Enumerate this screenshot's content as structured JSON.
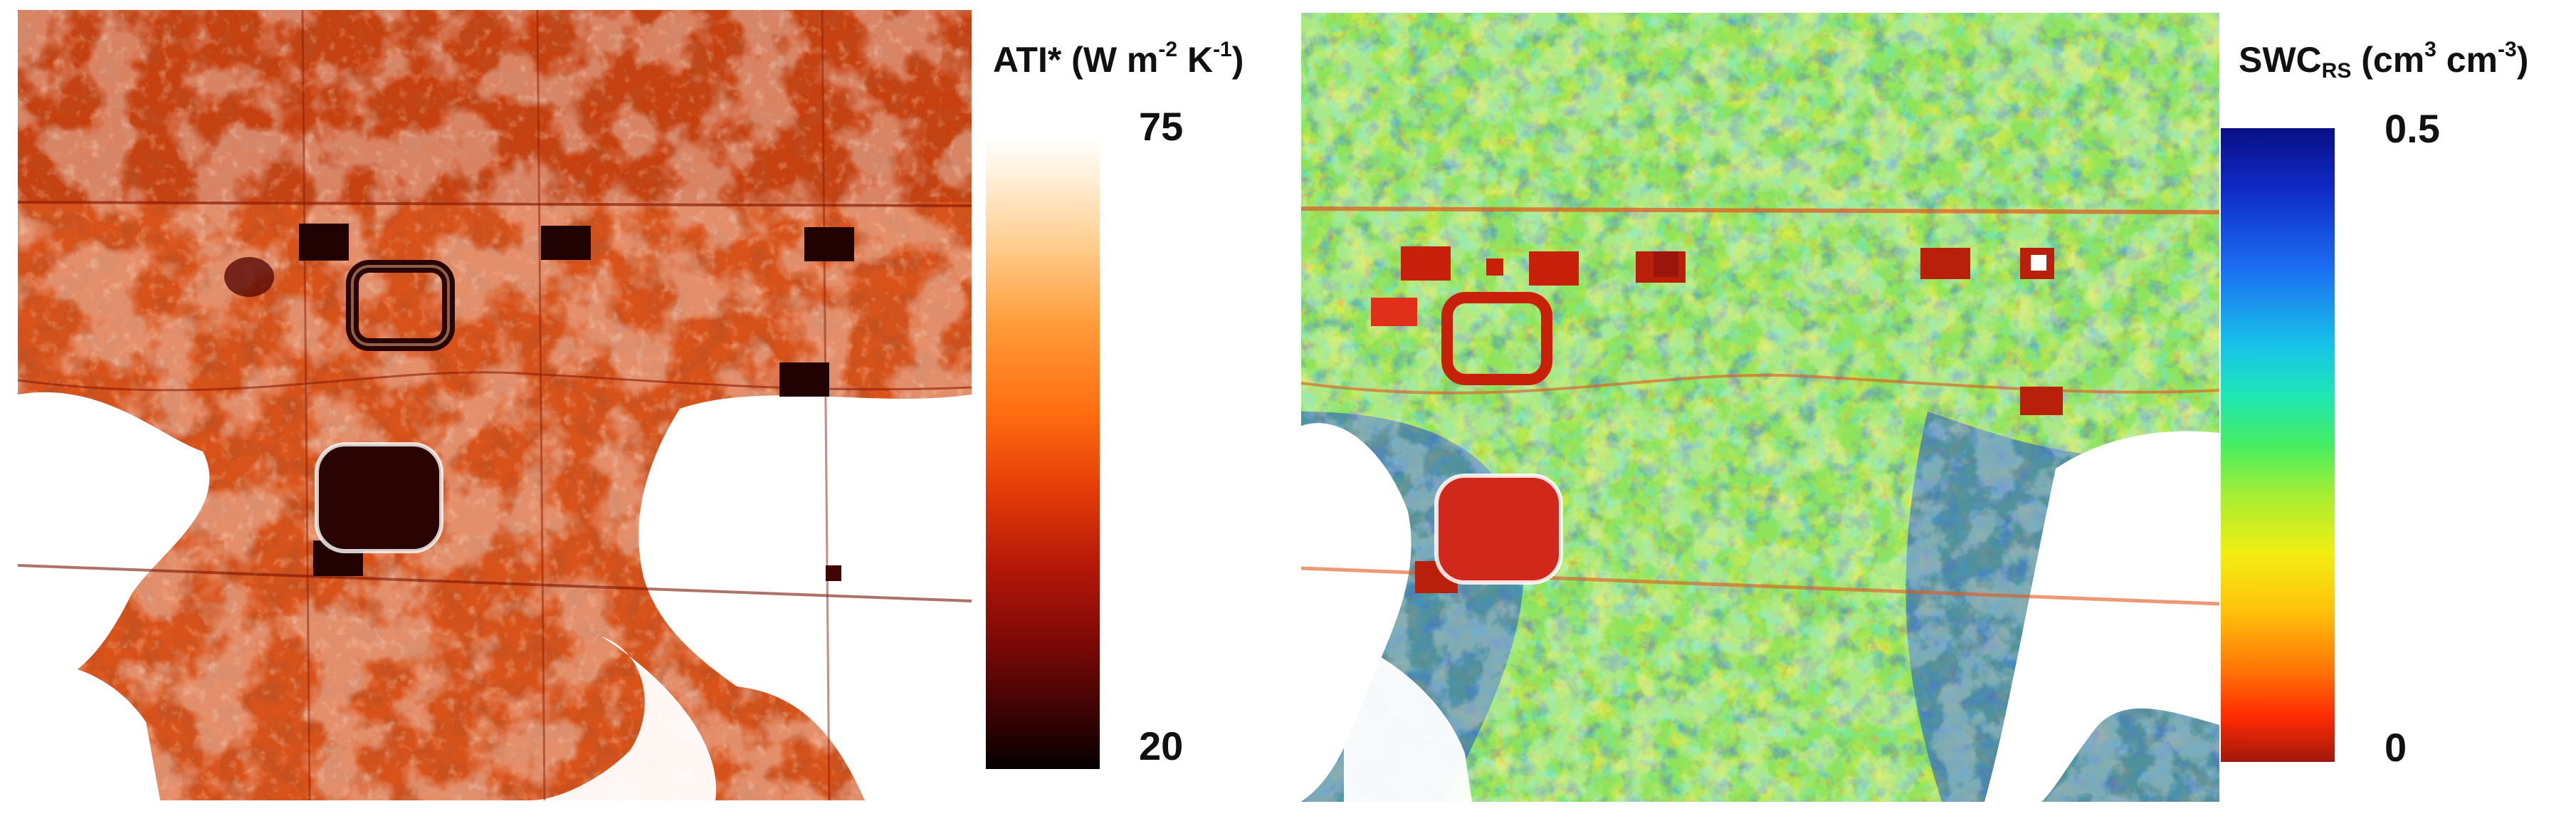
{
  "left_panel": {
    "colorbar": {
      "title_main": "ATI* (W m",
      "title_exp1": "-2",
      "title_mid": " K",
      "title_exp2": "-1",
      "title_end": ")",
      "max_label": "75",
      "min_label": "20",
      "colors": [
        "#ffffff",
        "#ffcb8a",
        "#ff6c10",
        "#b51808",
        "#050000"
      ]
    },
    "image_description_icon": "thermal-inertia-map"
  },
  "right_panel": {
    "colorbar": {
      "title_main": "SWC",
      "title_sub": "RS",
      "title_mid": " (cm",
      "title_exp1": "3",
      "title_mid2": " cm",
      "title_exp2": "-3",
      "title_end": ")",
      "max_label": "0.5",
      "min_label": "0",
      "colors": [
        "#0a0f86",
        "#1b6df0",
        "#18c1ea",
        "#46ee62",
        "#f1ee12",
        "#ff7a07",
        "#a0180b"
      ]
    },
    "image_description_icon": "soil-water-content-map"
  }
}
